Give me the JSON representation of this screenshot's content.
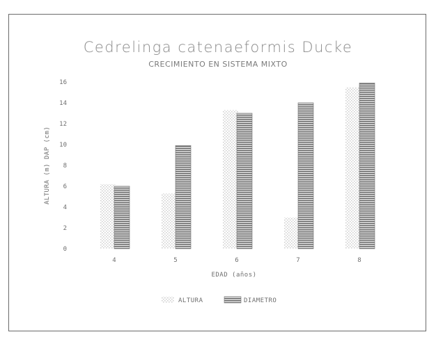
{
  "chart_data": {
    "type": "bar",
    "title": "Cedrelinga catenaeformis Ducke",
    "subtitle": "CRECIMIENTO EN SISTEMA MIXTO",
    "xlabel": "EDAD (años)",
    "ylabel": "ALTURA (m) DAP (cm)",
    "categories": [
      "4",
      "5",
      "6",
      "7",
      "8"
    ],
    "ylim": [
      0,
      16
    ],
    "yticks": [
      0,
      2,
      4,
      6,
      8,
      10,
      12,
      14,
      16
    ],
    "series": [
      {
        "name": "ALTURA",
        "values": [
          6.2,
          5.3,
          13.3,
          3.0,
          15.5
        ]
      },
      {
        "name": "DIAMETRO",
        "values": [
          6.0,
          9.9,
          13.0,
          14.0,
          15.9
        ]
      }
    ],
    "legend_position": "bottom",
    "grid": false,
    "colors": {
      "altura": "#b8b8b8",
      "diametro": "#8c8c8c",
      "text": "#6e6e6e"
    }
  }
}
